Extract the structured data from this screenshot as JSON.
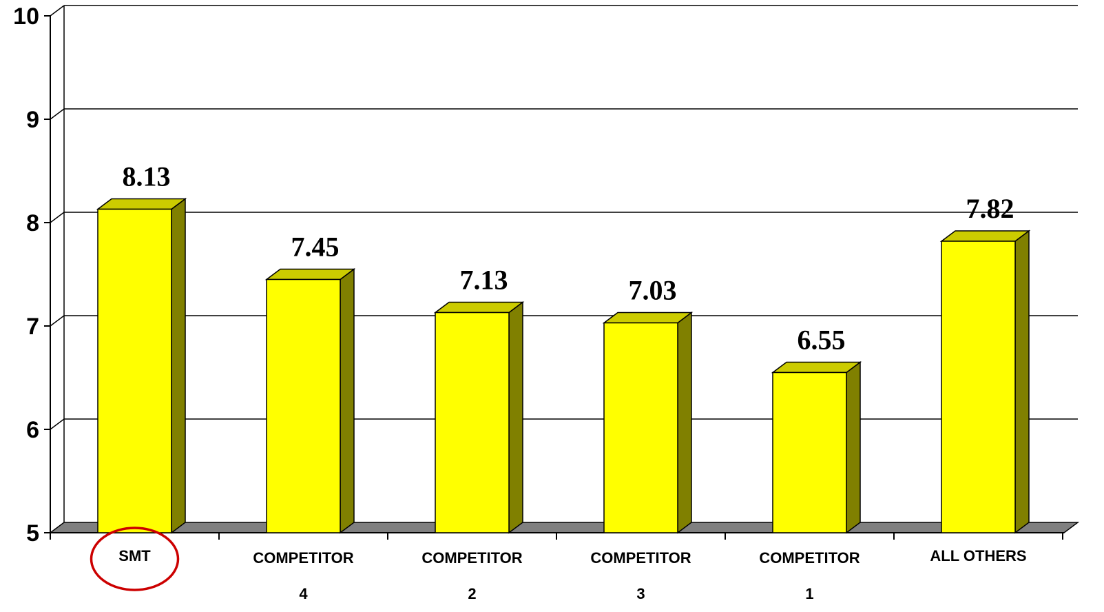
{
  "chart_data": {
    "type": "bar",
    "style": "3d-column",
    "categories": [
      [
        "SMT"
      ],
      [
        "COMPETITOR",
        "4"
      ],
      [
        "COMPETITOR",
        "2"
      ],
      [
        "COMPETITOR",
        "3"
      ],
      [
        "COMPETITOR",
        "1"
      ],
      [
        "ALL OTHERS"
      ]
    ],
    "values": [
      8.13,
      7.45,
      7.13,
      7.03,
      6.55,
      7.82
    ],
    "data_labels": [
      "8.13",
      "7.45",
      "7.13",
      "7.03",
      "6.55",
      "7.82"
    ],
    "y_ticks": [
      "5",
      "6",
      "7",
      "8",
      "9",
      "10"
    ],
    "ylim": [
      5,
      10
    ],
    "grid": true,
    "highlighted_category": "SMT",
    "colors": {
      "bar_front": "#ffff00",
      "bar_top": "#cccc00",
      "bar_side": "#808000",
      "floor": "#808080",
      "highlight_ring": "#cc0000",
      "gridline": "#000000"
    }
  }
}
